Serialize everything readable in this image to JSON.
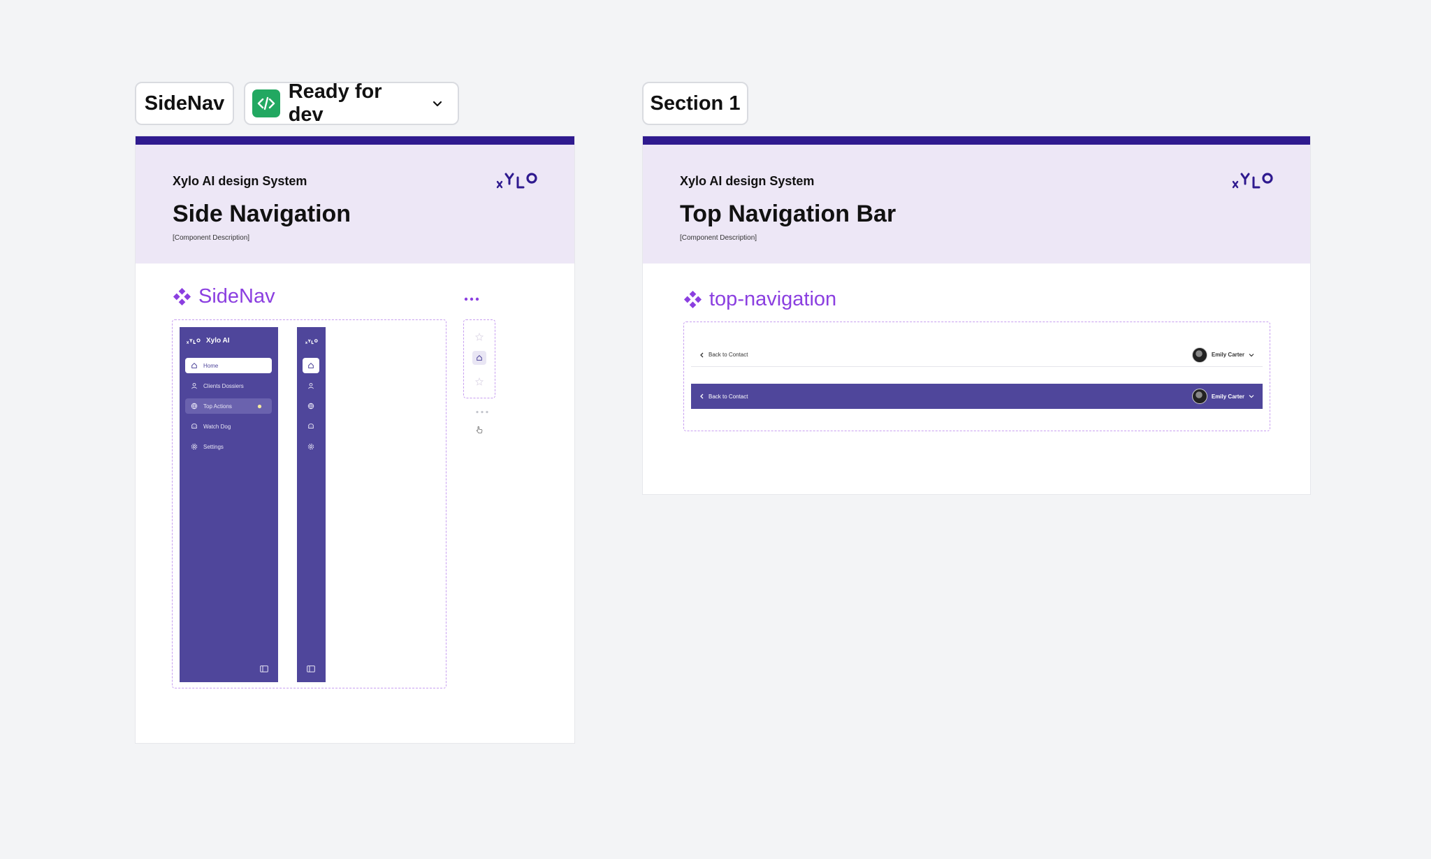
{
  "chips": {
    "sidenav_label": "SideNav",
    "status_label": "Ready for dev",
    "section_label": "Section 1"
  },
  "colors": {
    "accent": "#8b3fe0",
    "brand_dark": "#2f1a8f",
    "sidebar_bg": "#4f469b",
    "header_bg": "#ede7f6",
    "status_green": "#22a861"
  },
  "left_card": {
    "system_name": "Xylo AI design System",
    "title": "Side Navigation",
    "description": "[Component Description]",
    "component_name": "SideNav",
    "sidebar": {
      "brand": "Xylo AI",
      "items": [
        {
          "label": "Home",
          "icon": "home-icon",
          "state": "active"
        },
        {
          "label": "Clients Dossiers",
          "icon": "user-icon",
          "state": "default"
        },
        {
          "label": "Top Actions",
          "icon": "globe-icon",
          "state": "hover"
        },
        {
          "label": "Watch Dog",
          "icon": "dog-icon",
          "state": "default"
        },
        {
          "label": "Settings",
          "icon": "gear-icon",
          "state": "default"
        }
      ]
    }
  },
  "right_card": {
    "system_name": "Xylo AI design System",
    "title": "Top Navigation Bar",
    "description": "[Component Description]",
    "component_name": "top-navigation",
    "variants": [
      {
        "back_label": "Back to Contact",
        "user_name": "Emily Carter",
        "theme": "light"
      },
      {
        "back_label": "Back to Contact",
        "user_name": "Emily Carter",
        "theme": "dark"
      }
    ]
  }
}
